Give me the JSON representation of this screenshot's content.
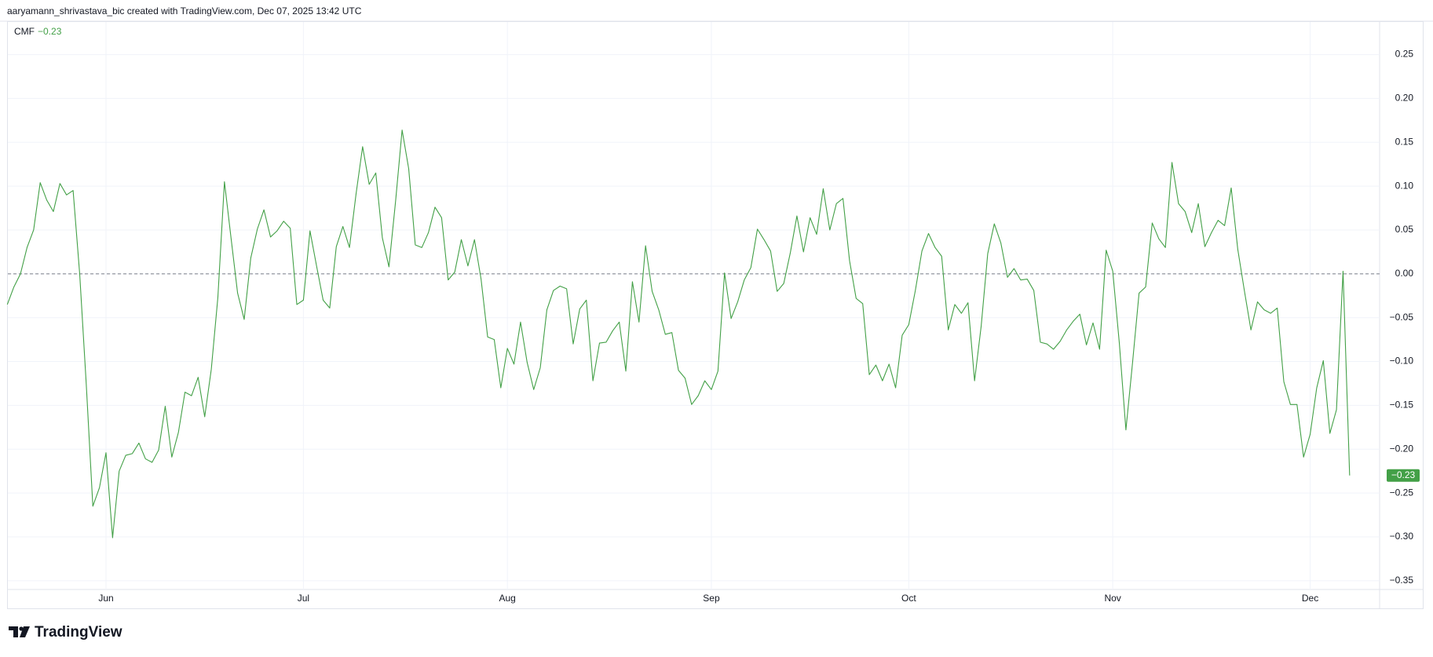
{
  "header": "aaryamann_shrivastava_bic created with TradingView.com, Dec 07, 2025 13:42 UTC",
  "brand": "TradingView",
  "chart_data": {
    "type": "line",
    "categories": [
      null,
      null,
      null,
      null,
      null,
      null,
      null,
      null,
      null,
      null,
      null,
      null,
      null,
      null,
      null,
      "Jun",
      null,
      null,
      null,
      null,
      null,
      null,
      null,
      null,
      null,
      null,
      null,
      null,
      null,
      null,
      null,
      null,
      null,
      null,
      null,
      null,
      null,
      null,
      null,
      null,
      null,
      null,
      null,
      null,
      null,
      "Jul",
      null,
      null,
      null,
      null,
      null,
      null,
      null,
      null,
      null,
      null,
      null,
      null,
      null,
      null,
      null,
      null,
      null,
      null,
      null,
      null,
      null,
      null,
      null,
      null,
      null,
      null,
      null,
      null,
      null,
      null,
      "Aug",
      null,
      null,
      null,
      null,
      null,
      null,
      null,
      null,
      null,
      null,
      null,
      null,
      null,
      null,
      null,
      null,
      null,
      null,
      null,
      null,
      null,
      null,
      null,
      null,
      null,
      null,
      null,
      null,
      null,
      null,
      "Sep",
      null,
      null,
      null,
      null,
      null,
      null,
      null,
      null,
      null,
      null,
      null,
      null,
      null,
      null,
      null,
      null,
      null,
      null,
      null,
      null,
      null,
      null,
      null,
      null,
      null,
      null,
      null,
      null,
      null,
      "Oct",
      null,
      null,
      null,
      null,
      null,
      null,
      null,
      null,
      null,
      null,
      null,
      null,
      null,
      null,
      null,
      null,
      null,
      null,
      null,
      null,
      null,
      null,
      null,
      null,
      null,
      null,
      null,
      null,
      null,
      null,
      "Nov",
      null,
      null,
      null,
      null,
      null,
      null,
      null,
      null,
      null,
      null,
      null,
      null,
      null,
      null,
      null,
      null,
      null,
      null,
      null,
      null,
      null,
      null,
      null,
      null,
      null,
      null,
      null,
      null,
      null,
      "Dec",
      null,
      null,
      null,
      null,
      null,
      null
    ],
    "series": [
      {
        "name": "CMF",
        "color": "#43a047",
        "last_label": "−0.23",
        "values": [
          -0.035,
          -0.015,
          0.0,
          0.03,
          0.05,
          0.104,
          0.084,
          0.071,
          0.103,
          0.09,
          0.095,
          0.0,
          -0.126,
          -0.265,
          -0.244,
          -0.204,
          -0.301,
          -0.225,
          -0.207,
          -0.205,
          -0.193,
          -0.211,
          -0.215,
          -0.201,
          -0.151,
          -0.209,
          -0.181,
          -0.135,
          -0.139,
          -0.118,
          -0.163,
          -0.109,
          -0.027,
          0.105,
          0.041,
          -0.022,
          -0.052,
          0.018,
          0.051,
          0.073,
          0.042,
          0.049,
          0.06,
          0.052,
          -0.035,
          -0.03,
          0.049,
          0.009,
          -0.03,
          -0.039,
          0.031,
          0.054,
          0.03,
          0.091,
          0.145,
          0.102,
          0.115,
          0.041,
          0.008,
          0.082,
          0.164,
          0.12,
          0.033,
          0.03,
          0.047,
          0.076,
          0.064,
          -0.007,
          0.002,
          0.039,
          0.009,
          0.039,
          -0.006,
          -0.072,
          -0.075,
          -0.13,
          -0.085,
          -0.103,
          -0.055,
          -0.101,
          -0.132,
          -0.107,
          -0.041,
          -0.019,
          -0.014,
          -0.017,
          -0.08,
          -0.04,
          -0.03,
          -0.122,
          -0.079,
          -0.078,
          -0.065,
          -0.055,
          -0.111,
          -0.009,
          -0.055,
          0.032,
          -0.02,
          -0.041,
          -0.069,
          -0.067,
          -0.11,
          -0.119,
          -0.149,
          -0.139,
          -0.122,
          -0.132,
          -0.111,
          0.001,
          -0.051,
          -0.032,
          -0.007,
          0.007,
          0.051,
          0.039,
          0.026,
          -0.02,
          -0.011,
          0.024,
          0.066,
          0.025,
          0.064,
          0.045,
          0.097,
          0.05,
          0.08,
          0.086,
          0.015,
          -0.028,
          -0.034,
          -0.115,
          -0.104,
          -0.122,
          -0.103,
          -0.13,
          -0.07,
          -0.058,
          -0.019,
          0.026,
          0.046,
          0.03,
          0.02,
          -0.064,
          -0.035,
          -0.045,
          -0.033,
          -0.122,
          -0.06,
          0.023,
          0.057,
          0.035,
          -0.004,
          0.006,
          -0.007,
          -0.006,
          -0.019,
          -0.078,
          -0.08,
          -0.086,
          -0.077,
          -0.064,
          -0.054,
          -0.046,
          -0.081,
          -0.056,
          -0.086,
          0.027,
          0.003,
          -0.079,
          -0.178,
          -0.102,
          -0.022,
          -0.015,
          0.058,
          0.04,
          0.03,
          0.127,
          0.08,
          0.071,
          0.047,
          0.08,
          0.031,
          0.047,
          0.061,
          0.055,
          0.098,
          0.028,
          -0.019,
          -0.064,
          -0.032,
          -0.041,
          -0.045,
          -0.039,
          -0.123,
          -0.149,
          -0.149,
          -0.209,
          -0.183,
          -0.13,
          -0.099,
          -0.182,
          -0.155,
          0.003,
          -0.23
        ]
      }
    ],
    "ylim": [
      -0.36,
      0.289
    ],
    "yticks": [
      0.25,
      {
        "value": 0.2,
        "label": "0.20"
      },
      0.15,
      {
        "value": 0.1,
        "label": "0.10"
      },
      0.05,
      {
        "value": 0,
        "label": "0.00"
      },
      {
        "value": -0.05,
        "label": "−0.05"
      },
      {
        "value": -0.1,
        "label": "−0.10"
      },
      {
        "value": -0.15,
        "label": "−0.15"
      },
      {
        "value": -0.2,
        "label": "−0.20"
      },
      {
        "value": -0.25,
        "label": "−0.25"
      },
      {
        "value": -0.3,
        "label": "−0.30"
      },
      {
        "value": -0.35,
        "label": "−0.35"
      }
    ],
    "grid": true,
    "baseline": 0
  }
}
